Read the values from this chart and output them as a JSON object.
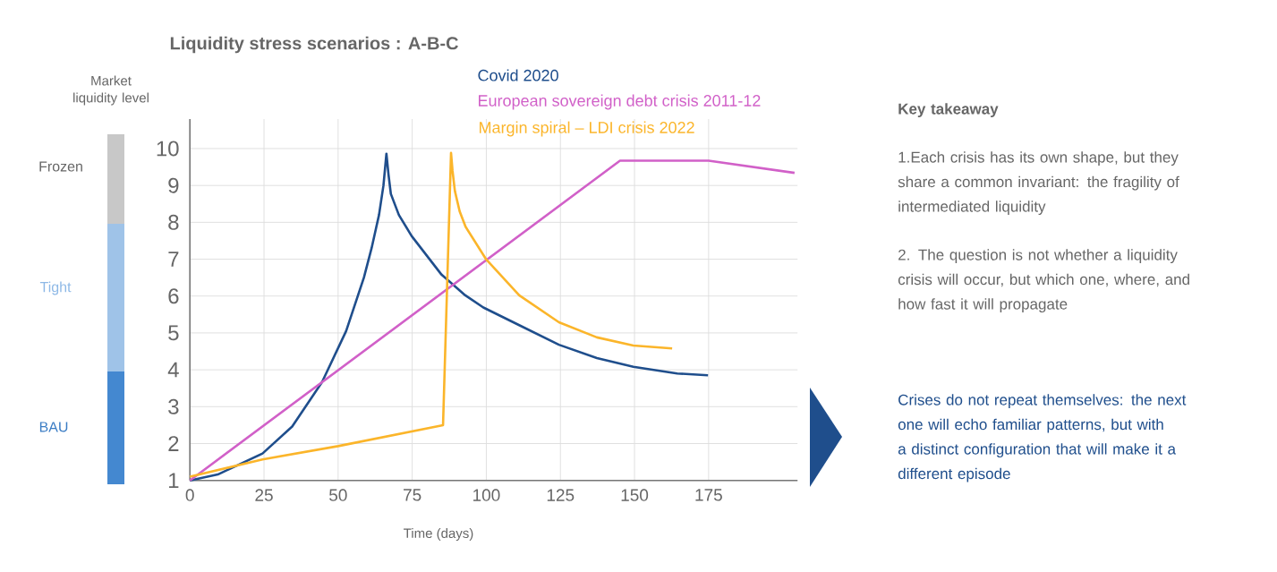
{
  "chart_data": {
    "type": "line",
    "title": "Liquidity stress scenarios : A-B-C",
    "xlabel": "Time (days)",
    "ylabel": "Market liquidity level",
    "xlim": [
      0,
      205
    ],
    "ylim": [
      1,
      10.8
    ],
    "xticks": [
      0,
      25,
      50,
      75,
      100,
      125,
      150,
      175
    ],
    "yticks": [
      1,
      2,
      3,
      4,
      5,
      6,
      7,
      8,
      9,
      10
    ],
    "grid": true,
    "legend": "top",
    "series": [
      {
        "name": "Covid 2020",
        "color": "#1f4e8c",
        "x": [
          0,
          9.4,
          24.5,
          34.5,
          44.6,
          52.7,
          58.7,
          61.3,
          63.8,
          65.3,
          66.3,
          67.0,
          67.8,
          70.5,
          74.8,
          84.9,
          92.9,
          99,
          111.1,
          124.5,
          137.3,
          149.6,
          164.4,
          174.8
        ],
        "values": [
          1.0,
          1.16,
          1.73,
          2.46,
          3.67,
          5.05,
          6.5,
          7.3,
          8.2,
          9.0,
          9.86,
          9.3,
          8.77,
          8.2,
          7.63,
          6.58,
          6.02,
          5.69,
          5.21,
          4.68,
          4.32,
          4.08,
          3.9,
          3.85
        ]
      },
      {
        "name": "European sovereign debt crisis 2011-12",
        "color": "#d160c8",
        "x": [
          0,
          145.1,
          175.0,
          204
        ],
        "values": [
          1.0,
          9.67,
          9.67,
          9.34
        ]
      },
      {
        "name": "Margin spiral – LDI crisis 2022",
        "color": "#fbb52a",
        "x": [
          0,
          24.5,
          50,
          85.4,
          88.1,
          88.6,
          89.4,
          91,
          93,
          100,
          111.1,
          124.5,
          137.3,
          149.6,
          162.7
        ],
        "values": [
          1.1,
          1.57,
          1.93,
          2.5,
          9.88,
          9.4,
          8.85,
          8.3,
          7.88,
          6.99,
          6.02,
          5.29,
          4.88,
          4.66,
          4.58
        ]
      }
    ],
    "annotations": [
      "Frozen",
      "Tight",
      "BAU",
      "Key takeaway",
      "1.Each crisis has its own shape, but they share a common invariant: the fragility of intermediated liquidity",
      "2. The question is not whether a liquidity crisis will occur, but which one, where, and how fast it will propagate",
      "Crises do not repeat themselves: the next one will echo familiar patterns, but with a distinct configuration that will make it a different episode"
    ]
  }
}
